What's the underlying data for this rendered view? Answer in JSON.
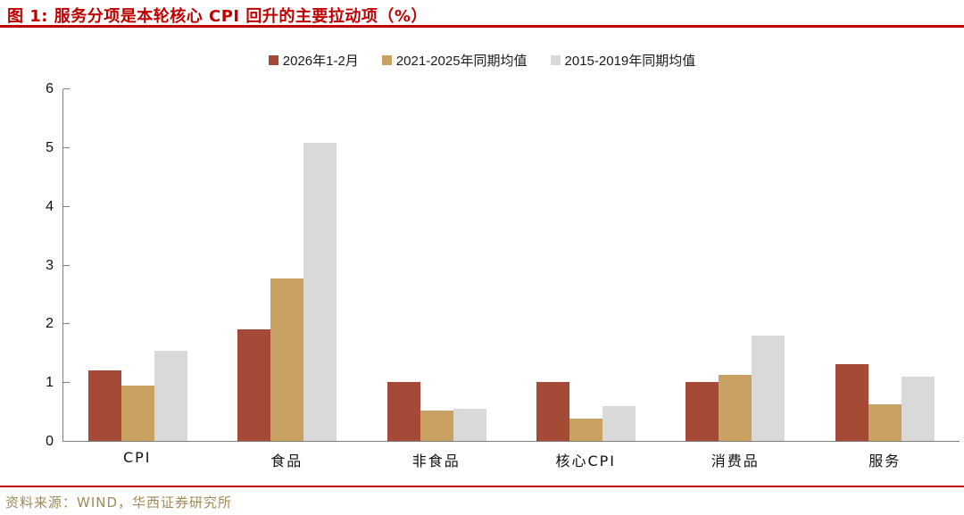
{
  "title": "图 1: 服务分项是本轮核心 CPI 回升的主要拉动项（%）",
  "source_note": "资料来源：WIND，华西证券研究所",
  "colors": {
    "title_red": "#C00000",
    "rule_red": "#C00000",
    "source_gold": "#9E8B55",
    "axis_gray": "#7f7f7f"
  },
  "chart_data": {
    "type": "bar",
    "categories": [
      "CPI",
      "食品",
      "非食品",
      "核心CPI",
      "消费品",
      "服务"
    ],
    "series": [
      {
        "name": "2026年1-2月",
        "color": "#A64A38",
        "values": [
          1.2,
          1.9,
          1.0,
          1.0,
          1.0,
          1.3
        ]
      },
      {
        "name": "2021-2025年同期均值",
        "color": "#C9A263",
        "values": [
          0.94,
          2.76,
          0.52,
          0.38,
          1.13,
          0.62
        ]
      },
      {
        "name": "2015-2019年同期均值",
        "color": "#D9D9D9",
        "values": [
          1.53,
          5.08,
          0.55,
          0.6,
          1.8,
          1.1
        ]
      }
    ],
    "ylim": [
      0,
      6
    ],
    "y_ticks": [
      6,
      5,
      4,
      3,
      2,
      1,
      0
    ],
    "grid": false,
    "legend_position": "top"
  }
}
